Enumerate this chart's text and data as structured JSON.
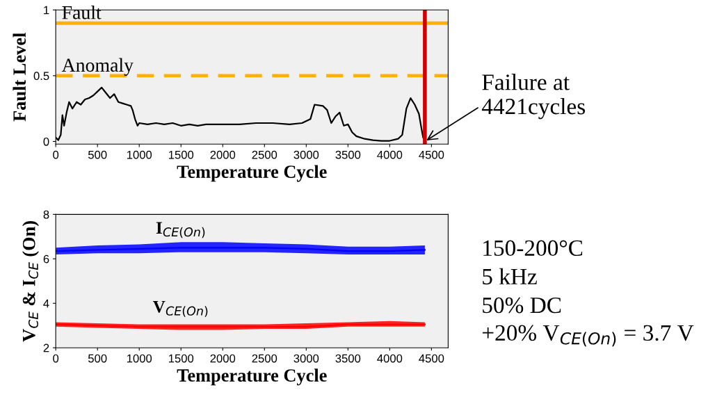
{
  "chart_data": [
    {
      "type": "line",
      "xlabel": "Temperature Cycle",
      "ylabel": "Fault Level",
      "xlim": [
        0,
        4700
      ],
      "ylim": [
        -0.02,
        1
      ],
      "xticks": [
        0,
        500,
        1000,
        1500,
        2000,
        2500,
        3000,
        3500,
        4000,
        4500
      ],
      "yticks": [
        0,
        0.5,
        1
      ],
      "grid": false,
      "legend": false,
      "series": [
        {
          "color": "#000000",
          "x": [
            0,
            30,
            60,
            80,
            100,
            130,
            160,
            200,
            250,
            300,
            350,
            400,
            450,
            500,
            550,
            600,
            650,
            700,
            750,
            800,
            850,
            900,
            920,
            950,
            980,
            1000,
            1100,
            1200,
            1300,
            1400,
            1500,
            1600,
            1700,
            1800,
            1900,
            2000,
            2200,
            2400,
            2600,
            2800,
            2950,
            3050,
            3100,
            3200,
            3250,
            3300,
            3350,
            3400,
            3450,
            3500,
            3550,
            3600,
            3700,
            3800,
            3900,
            4000,
            4100,
            4150,
            4200,
            4250,
            4300,
            4350,
            4380,
            4400,
            4421
          ],
          "values": [
            0.03,
            0.01,
            0.05,
            0.2,
            0.12,
            0.22,
            0.3,
            0.25,
            0.3,
            0.28,
            0.32,
            0.33,
            0.35,
            0.38,
            0.41,
            0.37,
            0.33,
            0.36,
            0.3,
            0.29,
            0.28,
            0.27,
            0.24,
            0.17,
            0.12,
            0.14,
            0.13,
            0.14,
            0.13,
            0.14,
            0.12,
            0.13,
            0.12,
            0.13,
            0.13,
            0.13,
            0.13,
            0.14,
            0.14,
            0.13,
            0.14,
            0.17,
            0.28,
            0.27,
            0.24,
            0.14,
            0.19,
            0.22,
            0.12,
            0.13,
            0.07,
            0.04,
            0.02,
            0.01,
            0.005,
            0.005,
            0.02,
            0.05,
            0.25,
            0.33,
            0.28,
            0.21,
            0.1,
            0.03,
            0.01
          ]
        }
      ],
      "ref_lines": [
        {
          "axis": "y",
          "value": 0.9,
          "label": "Fault",
          "color": "#ffb000",
          "line_style": "solid"
        },
        {
          "axis": "y",
          "value": 0.5,
          "label": "Anomaly",
          "color": "#ffb000",
          "line_style": "dashed"
        },
        {
          "axis": "x",
          "value": 4421,
          "color": "#d00000",
          "line_style": "solid"
        }
      ],
      "annotations": [
        {
          "text": "Failure at\n4421cycles",
          "x": 4421,
          "y": 0
        }
      ]
    },
    {
      "type": "line",
      "xlabel": "Temperature Cycle",
      "ylabel": "V$_{CE}$ & I$_{CE}$ (On)",
      "xlim": [
        0,
        4700
      ],
      "ylim": [
        2,
        8
      ],
      "xticks": [
        0,
        500,
        1000,
        1500,
        2000,
        2500,
        3000,
        3500,
        4000,
        4500
      ],
      "yticks": [
        2,
        4,
        6,
        8
      ],
      "grid": false,
      "legend": false,
      "series": [
        {
          "name": "I$_{CE(On)}$",
          "color": "#0000ff",
          "x": [
            0,
            500,
            1000,
            1500,
            2000,
            2500,
            3000,
            3500,
            4000,
            4421
          ],
          "values": [
            6.35,
            6.4,
            6.45,
            6.5,
            6.5,
            6.5,
            6.45,
            6.35,
            6.35,
            6.4
          ],
          "lower": [
            6.2,
            6.25,
            6.25,
            6.3,
            6.3,
            6.3,
            6.25,
            6.2,
            6.2,
            6.2
          ],
          "upper": [
            6.5,
            6.6,
            6.65,
            6.75,
            6.75,
            6.7,
            6.65,
            6.55,
            6.55,
            6.6
          ]
        },
        {
          "name": "V$_{CE(On)}$",
          "color": "#ff0000",
          "x": [
            0,
            500,
            1000,
            1500,
            2000,
            2500,
            3000,
            3500,
            4000,
            4421
          ],
          "values": [
            3.05,
            3.0,
            2.95,
            2.95,
            2.95,
            2.95,
            2.95,
            3.05,
            3.05,
            3.05
          ],
          "lower": [
            2.95,
            2.9,
            2.85,
            2.8,
            2.8,
            2.85,
            2.85,
            2.95,
            2.95,
            2.95
          ],
          "upper": [
            3.15,
            3.1,
            3.05,
            3.05,
            3.05,
            3.05,
            3.1,
            3.15,
            3.2,
            3.15
          ]
        }
      ],
      "annotations": [
        "150-200°C",
        "5 kHz",
        "50% DC",
        "+20% V$_{CE(On)}$ = 3.7 V"
      ]
    }
  ]
}
